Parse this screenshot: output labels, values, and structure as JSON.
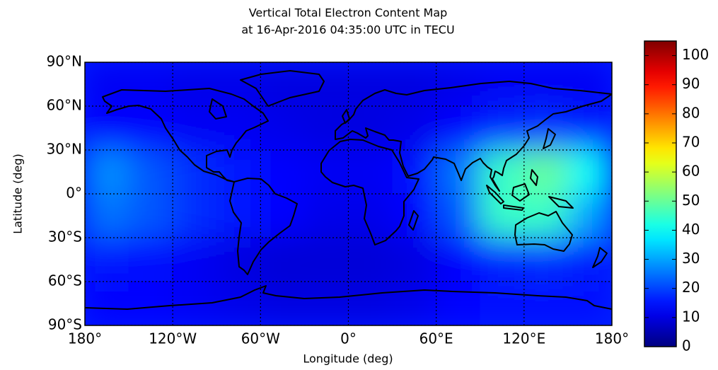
{
  "chart_data": {
    "type": "heatmap",
    "title": "Vertical Total Electron Content Map",
    "subtitle": "at 16-Apr-2016 04:35:00 UTC in TECU",
    "xlabel": "Longitude (deg)",
    "ylabel": "Latitude (deg)",
    "xlim": [
      -180,
      180
    ],
    "ylim": [
      -90,
      90
    ],
    "xticks": [
      {
        "value": -180,
        "label": "180°"
      },
      {
        "value": -120,
        "label": "120°W"
      },
      {
        "value": -60,
        "label": "60°W"
      },
      {
        "value": 0,
        "label": "0°"
      },
      {
        "value": 60,
        "label": "60°E"
      },
      {
        "value": 120,
        "label": "120°E"
      },
      {
        "value": 180,
        "label": "180°"
      }
    ],
    "yticks": [
      {
        "value": -90,
        "label": "90°S"
      },
      {
        "value": -60,
        "label": "60°S"
      },
      {
        "value": -30,
        "label": "30°S"
      },
      {
        "value": 0,
        "label": "0°"
      },
      {
        "value": 30,
        "label": "30°N"
      },
      {
        "value": 60,
        "label": "60°N"
      },
      {
        "value": 90,
        "label": "90°N"
      }
    ],
    "grid": true,
    "colormap": "jet",
    "x": [
      -165,
      -135,
      -105,
      -75,
      -45,
      -15,
      15,
      45,
      75,
      105,
      135,
      165
    ],
    "y": [
      75,
      45,
      15,
      -15,
      -45,
      -75
    ],
    "values": [
      [
        12,
        12,
        11,
        11,
        10,
        10,
        10,
        10,
        11,
        12,
        12,
        12
      ],
      [
        13,
        13,
        12,
        12,
        11,
        10,
        10,
        11,
        13,
        17,
        18,
        16
      ],
      [
        28,
        22,
        18,
        15,
        13,
        12,
        12,
        14,
        25,
        45,
        50,
        40
      ],
      [
        25,
        22,
        18,
        15,
        13,
        11,
        11,
        13,
        22,
        45,
        45,
        30
      ],
      [
        15,
        14,
        12,
        10,
        9,
        9,
        9,
        10,
        13,
        17,
        18,
        16
      ],
      [
        13,
        13,
        12,
        11,
        10,
        10,
        10,
        11,
        13,
        14,
        14,
        14
      ]
    ],
    "colorbar": {
      "lim": [
        0,
        105
      ],
      "ticks": [
        0,
        10,
        20,
        30,
        40,
        50,
        60,
        70,
        80,
        90,
        100
      ]
    }
  }
}
